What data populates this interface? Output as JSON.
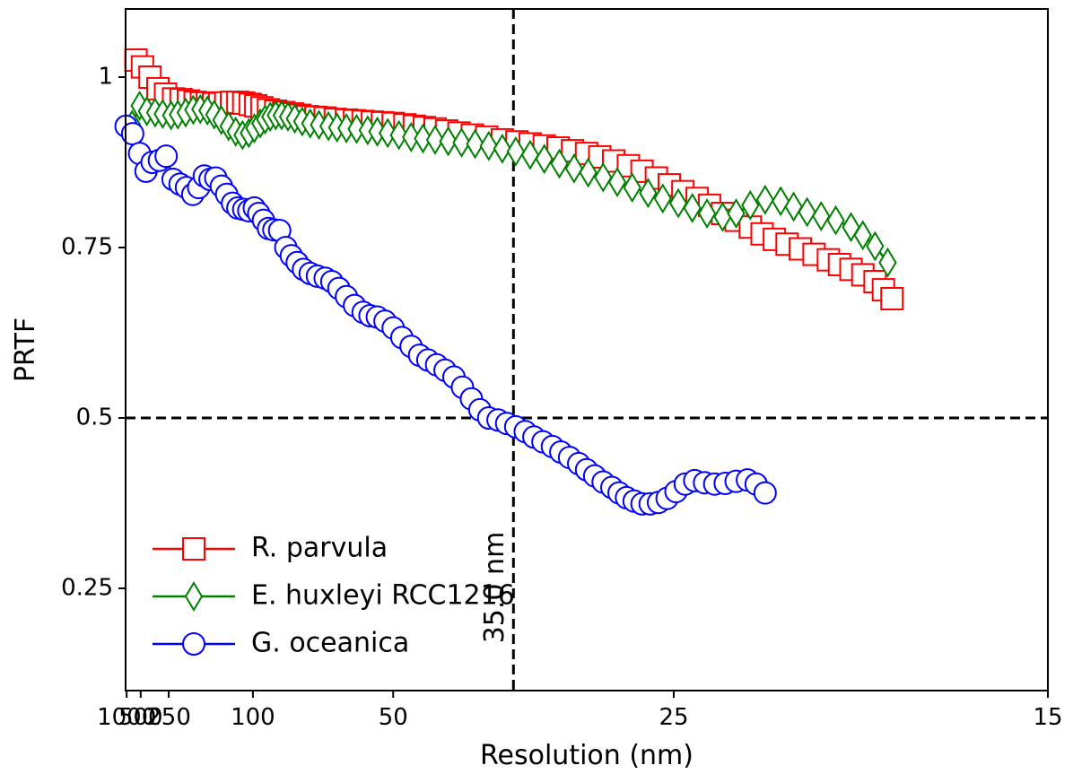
{
  "chart_data": {
    "type": "line",
    "title": "",
    "xlabel": "Resolution (nm)",
    "ylabel": "PRTF",
    "x_scale": "reciprocal",
    "x_inverted": true,
    "xlim": [
      1080,
      15
    ],
    "ylim": [
      0.1,
      1.1
    ],
    "x_ticks": [
      1000,
      500,
      250,
      100,
      50,
      25,
      15
    ],
    "x_tick_labels": [
      "1000",
      "500",
      "250",
      "100",
      "50",
      "25",
      "15"
    ],
    "y_ticks": [
      0.25,
      0.5,
      0.75,
      1.0
    ],
    "y_tick_labels": [
      "0.25",
      "0.5",
      "0.75",
      "1"
    ],
    "grid": false,
    "legend_position": "lower-left",
    "reference_lines": [
      {
        "orientation": "horizontal",
        "value": 0.5,
        "style": "dashed",
        "color": "#000000"
      },
      {
        "orientation": "vertical",
        "value": 35.0,
        "style": "dashed",
        "color": "#000000",
        "label": "35.0 nm"
      }
    ],
    "series": [
      {
        "name": "R. parvula",
        "color": "#ff0000",
        "marker": "square",
        "x": [
          600,
          470,
          375,
          310,
          265,
          230,
          205,
          185,
          170,
          158,
          148,
          139,
          131,
          124,
          118,
          112,
          107,
          102,
          98,
          94,
          90,
          86,
          82,
          78,
          75,
          72,
          69,
          66,
          63,
          60,
          58,
          56,
          54,
          52,
          50,
          48,
          46.5,
          45,
          43.5,
          42,
          40.5,
          39,
          37.5,
          36,
          34.7,
          33.6,
          32.5,
          31.5,
          30.5,
          29.6,
          28.8,
          28,
          27.2,
          26.5,
          25.8,
          25.2,
          24.6,
          24,
          23.5,
          23,
          22.5,
          22,
          21.6,
          21.2,
          20.8,
          20.4,
          20,
          19.6,
          19.3,
          19,
          18.7,
          18.4,
          18.2,
          18
        ],
        "y": [
          1.025,
          1.015,
          1.0,
          0.983,
          0.975,
          0.968,
          0.967,
          0.965,
          0.963,
          0.962,
          0.962,
          0.961,
          0.961,
          0.962,
          0.963,
          0.963,
          0.962,
          0.96,
          0.958,
          0.955,
          0.952,
          0.95,
          0.948,
          0.946,
          0.944,
          0.942,
          0.941,
          0.94,
          0.938,
          0.937,
          0.936,
          0.935,
          0.934,
          0.933,
          0.932,
          0.93,
          0.928,
          0.926,
          0.924,
          0.921,
          0.918,
          0.915,
          0.912,
          0.908,
          0.905,
          0.902,
          0.899,
          0.896,
          0.892,
          0.888,
          0.883,
          0.877,
          0.87,
          0.862,
          0.852,
          0.842,
          0.832,
          0.822,
          0.812,
          0.8,
          0.79,
          0.78,
          0.77,
          0.762,
          0.755,
          0.748,
          0.74,
          0.732,
          0.725,
          0.718,
          0.71,
          0.7,
          0.688,
          0.675
        ]
      },
      {
        "name": "E. huxleyi RCC1216",
        "color": "#008000",
        "marker": "diamond",
        "x": [
          720,
          520,
          410,
          330,
          280,
          240,
          215,
          192,
          174,
          160,
          148,
          138,
          129,
          121,
          114,
          108,
          103,
          99,
          95,
          92,
          89,
          86,
          83,
          80,
          77,
          74,
          71,
          68,
          65,
          62.5,
          60,
          57.5,
          55,
          53,
          51,
          49,
          47,
          45.2,
          43.5,
          41.8,
          40.2,
          38.7,
          37.3,
          36,
          34.8,
          33.6,
          32.5,
          31.4,
          30.4,
          29.5,
          28.6,
          27.8,
          27,
          26.2,
          25.5,
          24.8,
          24.2,
          23.6,
          23,
          22.5,
          22,
          21.5,
          21,
          20.6,
          20.2,
          19.8,
          19.4,
          19,
          18.7,
          18.4,
          18.1
        ],
        "y": [
          0.93,
          0.958,
          0.95,
          0.948,
          0.946,
          0.944,
          0.945,
          0.948,
          0.952,
          0.953,
          0.951,
          0.945,
          0.937,
          0.928,
          0.92,
          0.915,
          0.918,
          0.925,
          0.932,
          0.938,
          0.942,
          0.944,
          0.944,
          0.942,
          0.939,
          0.935,
          0.932,
          0.93,
          0.928,
          0.926,
          0.925,
          0.924,
          0.922,
          0.92,
          0.918,
          0.915,
          0.912,
          0.91,
          0.908,
          0.906,
          0.904,
          0.902,
          0.899,
          0.895,
          0.891,
          0.886,
          0.88,
          0.873,
          0.866,
          0.86,
          0.853,
          0.846,
          0.838,
          0.83,
          0.822,
          0.815,
          0.808,
          0.8,
          0.795,
          0.8,
          0.812,
          0.82,
          0.818,
          0.81,
          0.802,
          0.796,
          0.79,
          0.78,
          0.768,
          0.752,
          0.728
        ]
      },
      {
        "name": "G. oceanica",
        "color": "#0000ff",
        "marker": "circle",
        "x": [
          1040,
          700,
          520,
          420,
          355,
          300,
          262,
          232,
          208,
          190,
          175,
          163,
          153,
          144,
          136,
          129,
          123,
          117,
          112,
          107,
          103,
          99,
          96,
          93,
          90,
          87,
          84,
          81,
          78.5,
          76,
          73.5,
          71,
          68.5,
          66,
          64,
          62,
          60,
          58,
          56,
          54.5,
          53,
          51.5,
          50,
          48.5,
          47,
          45.7,
          44.5,
          43.3,
          42.2,
          41.1,
          40.1,
          39.1,
          38.2,
          37.3,
          36.4,
          35.6,
          34.8,
          34,
          33.3,
          32.6,
          31.9,
          31.3,
          30.7,
          30.1,
          29.6,
          29.1,
          28.6,
          28.1,
          27.7,
          27.3,
          26.9,
          26.5,
          26.1,
          25.7,
          25.3,
          24.9,
          24.5,
          24.1,
          23.7,
          23.3,
          22.9,
          22.5,
          22.1,
          21.8,
          21.5
        ],
        "y": [
          0.928,
          0.917,
          0.888,
          0.862,
          0.875,
          0.878,
          0.884,
          0.85,
          0.843,
          0.838,
          0.828,
          0.838,
          0.855,
          0.85,
          0.852,
          0.84,
          0.828,
          0.815,
          0.808,
          0.806,
          0.804,
          0.808,
          0.8,
          0.79,
          0.778,
          0.776,
          0.775,
          0.75,
          0.738,
          0.728,
          0.718,
          0.712,
          0.708,
          0.705,
          0.7,
          0.69,
          0.678,
          0.665,
          0.655,
          0.65,
          0.648,
          0.642,
          0.632,
          0.618,
          0.605,
          0.592,
          0.585,
          0.578,
          0.57,
          0.56,
          0.545,
          0.528,
          0.512,
          0.5,
          0.497,
          0.492,
          0.487,
          0.48,
          0.472,
          0.465,
          0.458,
          0.45,
          0.442,
          0.433,
          0.424,
          0.415,
          0.406,
          0.398,
          0.39,
          0.383,
          0.378,
          0.374,
          0.374,
          0.376,
          0.382,
          0.392,
          0.403,
          0.408,
          0.405,
          0.403,
          0.404,
          0.407,
          0.409,
          0.403,
          0.39
        ]
      }
    ]
  }
}
